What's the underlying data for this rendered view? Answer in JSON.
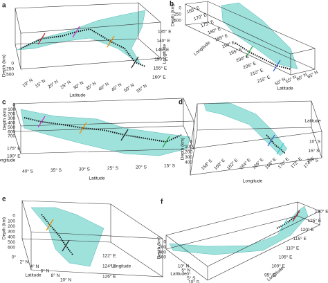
{
  "panels": [
    {
      "label": "a",
      "depth_label": "Depth (km)",
      "depth_ticks": [
        "0",
        "250",
        "500"
      ],
      "lat_label": "Latitude",
      "lat_ticks": [
        "10° N",
        "15° N",
        "20° N",
        "25° N",
        "30° N",
        "35° N",
        "40° N",
        "45° N",
        "50° N",
        "55° N"
      ],
      "lon_label": "Longitude",
      "lon_ticks": [
        "135° E",
        "140° E",
        "145° E",
        "150° E",
        "155° E",
        "160° E"
      ]
    },
    {
      "label": "b",
      "depth_label": "Depth (km)",
      "depth_ticks": [
        "0",
        "250",
        "500"
      ],
      "lat_label": "Latitude",
      "lat_ticks": [
        "50° N",
        "55° N",
        "60° N",
        "65° N"
      ],
      "lon_label": "Longitude",
      "lon_ticks": [
        "165° E",
        "170° E",
        "175° E",
        "180° E",
        "185° E",
        "190° E",
        "195° E",
        "200° E",
        "205° E",
        "210° E",
        "215° E"
      ]
    },
    {
      "label": "c",
      "depth_label": "Depth (km)",
      "depth_ticks": [
        "0",
        "100",
        "200",
        "300",
        "400",
        "500",
        "600",
        "700"
      ],
      "lat_label": "Latitude",
      "lat_ticks": [
        "40° S",
        "35° S",
        "30° S",
        "25° S",
        "20° S",
        "15° S"
      ],
      "lon_label": "Longitude",
      "lon_ticks": [
        "175° E",
        "180° E"
      ]
    },
    {
      "label": "d",
      "depth_label": "Depth (km)",
      "depth_ticks": [
        "0",
        "100",
        "200",
        "300",
        "400"
      ],
      "lat_label": "Latitude",
      "lat_ticks": [
        "10° S",
        "15° S",
        "20° S"
      ],
      "lon_label": "Longitude",
      "lon_ticks": [
        "158° E",
        "160° E",
        "162° E",
        "164° E",
        "166° E",
        "168° E",
        "170° E",
        "172° E",
        "174° E"
      ]
    },
    {
      "label": "e",
      "depth_label": "Depth (km)",
      "depth_ticks": [
        "0",
        "100",
        "200",
        "300",
        "400",
        "500",
        "600"
      ],
      "lat_label": "Latitude",
      "lat_ticks": [
        "0°",
        "2° N",
        "4° N",
        "6° N",
        "8° N",
        "10° N"
      ],
      "lon_label": "Longitude",
      "lon_ticks": [
        "122° E",
        "124° E",
        "126° E"
      ]
    },
    {
      "label": "f",
      "depth_label": "Depth (km)",
      "depth_ticks": [
        "0",
        "200",
        "400",
        "600"
      ],
      "lat_label": "Latitude",
      "lat_ticks": [
        "10° N",
        "5° N",
        "0°",
        "5° S",
        "10° S"
      ],
      "lon_label": "Longitude",
      "lon_ticks": [
        "95° E",
        "100° E",
        "105° E",
        "110° E",
        "115° E",
        "120° E",
        "125° E",
        "130° E"
      ]
    }
  ]
}
